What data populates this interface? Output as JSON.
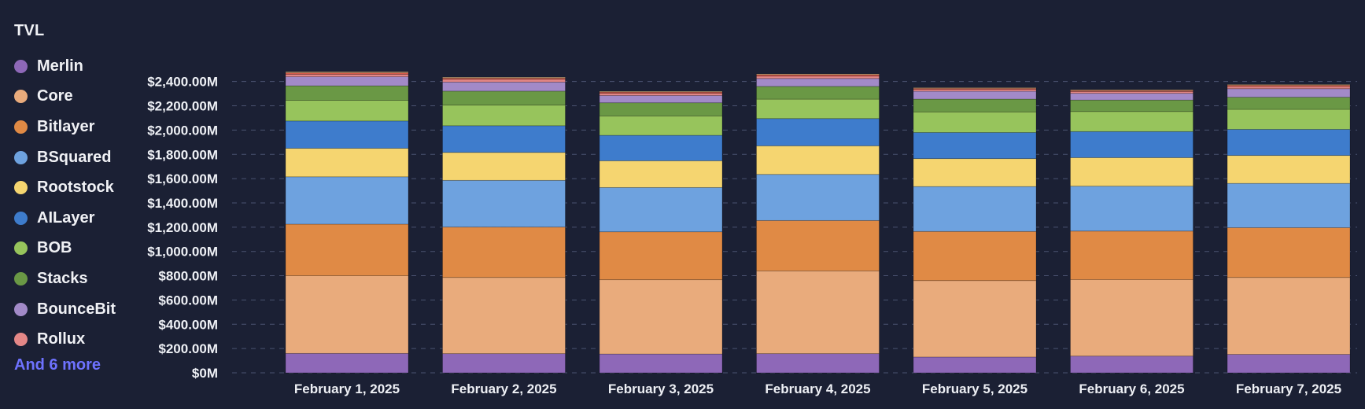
{
  "chart_data": {
    "type": "bar",
    "title": "",
    "subtitle": "",
    "xlabel": "",
    "ylabel": "",
    "stacked": true,
    "categories": [
      "February 1, 2025",
      "February 2, 2025",
      "February 3, 2025",
      "February 4, 2025",
      "February 5, 2025",
      "February 6, 2025",
      "February 7, 2025"
    ],
    "ylim": [
      0,
      2500
    ],
    "y_ticks": [
      0,
      200,
      400,
      600,
      800,
      1000,
      1200,
      1400,
      1600,
      1800,
      2000,
      2200,
      2400
    ],
    "y_tick_labels": [
      "$0M",
      "$200.00M",
      "$400.00M",
      "$600.00M",
      "$800.00M",
      "$1,000.00M",
      "$1,200.00M",
      "$1,400.00M",
      "$1,600.00M",
      "$1,800.00M",
      "$2,000.00M",
      "$2,200.00M",
      "$2,400.00M"
    ],
    "grid": true,
    "legend": {
      "title": "TVL",
      "position": "left",
      "more_label": "And 6 more"
    },
    "series": [
      {
        "name": "Merlin",
        "color": "#8e68b8",
        "values": [
          160,
          158,
          155,
          158,
          130,
          138,
          152
        ]
      },
      {
        "name": "Core",
        "color": "#e9ab7c",
        "values": [
          640,
          628,
          612,
          682,
          630,
          630,
          634
        ]
      },
      {
        "name": "Bitlayer",
        "color": "#e08a45",
        "values": [
          425,
          415,
          395,
          415,
          405,
          400,
          410
        ]
      },
      {
        "name": "BSquared",
        "color": "#6ea2df",
        "values": [
          390,
          385,
          365,
          380,
          370,
          370,
          365
        ]
      },
      {
        "name": "Rootstock",
        "color": "#f5d570",
        "values": [
          235,
          230,
          220,
          235,
          230,
          235,
          230
        ]
      },
      {
        "name": "AILayer",
        "color": "#3e7ccc",
        "values": [
          225,
          220,
          210,
          225,
          215,
          215,
          215
        ]
      },
      {
        "name": "BOB",
        "color": "#97c45c",
        "values": [
          170,
          170,
          160,
          160,
          170,
          165,
          165
        ]
      },
      {
        "name": "Stacks",
        "color": "#6a9845",
        "values": [
          120,
          115,
          108,
          105,
          105,
          95,
          100
        ]
      },
      {
        "name": "BounceBit",
        "color": "#a28ac8",
        "values": [
          75,
          75,
          60,
          65,
          65,
          55,
          70
        ]
      },
      {
        "name": "Rollux",
        "color": "#e48787",
        "values": [
          20,
          22,
          18,
          20,
          15,
          15,
          18
        ]
      },
      {
        "name": "",
        "color": "#d75a4a",
        "values": [
          12,
          10,
          10,
          12,
          8,
          8,
          10
        ]
      },
      {
        "name": "",
        "color": "#f0c28a",
        "values": [
          8,
          7,
          6,
          6,
          6,
          6,
          6
        ]
      }
    ]
  }
}
